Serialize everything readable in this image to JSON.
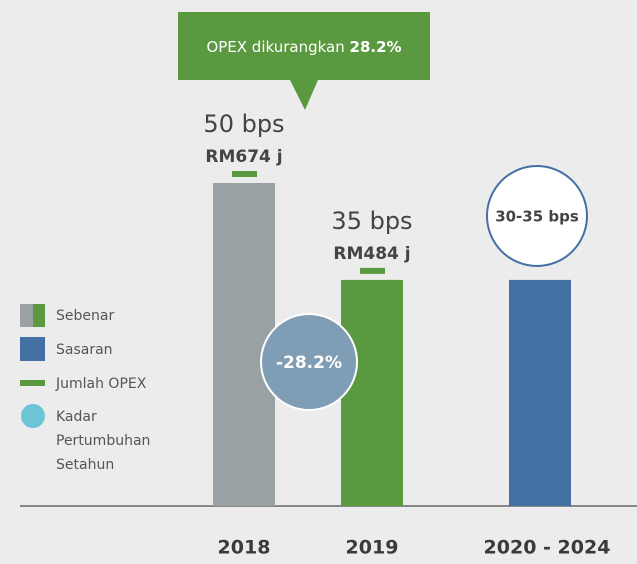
{
  "chart_data": {
    "type": "bar",
    "categories": [
      "2018",
      "2019",
      "2020 - 2024"
    ],
    "values": [
      50,
      35,
      35
    ],
    "value_labels": [
      "50 bps",
      "35 bps",
      "30-35 bps"
    ],
    "colors": [
      "#9aa1a5",
      "#5a993f",
      "#4470a4"
    ],
    "ylim": [
      0,
      50
    ],
    "opex": {
      "values": [
        674,
        484
      ],
      "value_labels": [
        "RM674 j",
        "RM484 j"
      ],
      "color": "#5a993f"
    },
    "callout": {
      "text": "OPEX dikurangkan ",
      "highlight": "28.2%"
    },
    "change_label": "-28.2%",
    "legend": {
      "actual": "Sebenar",
      "target": "Sasaran",
      "opex": "Jumlah OPEX",
      "growth": [
        "Kadar",
        "Pertumbuhan",
        "Setahun"
      ]
    }
  }
}
